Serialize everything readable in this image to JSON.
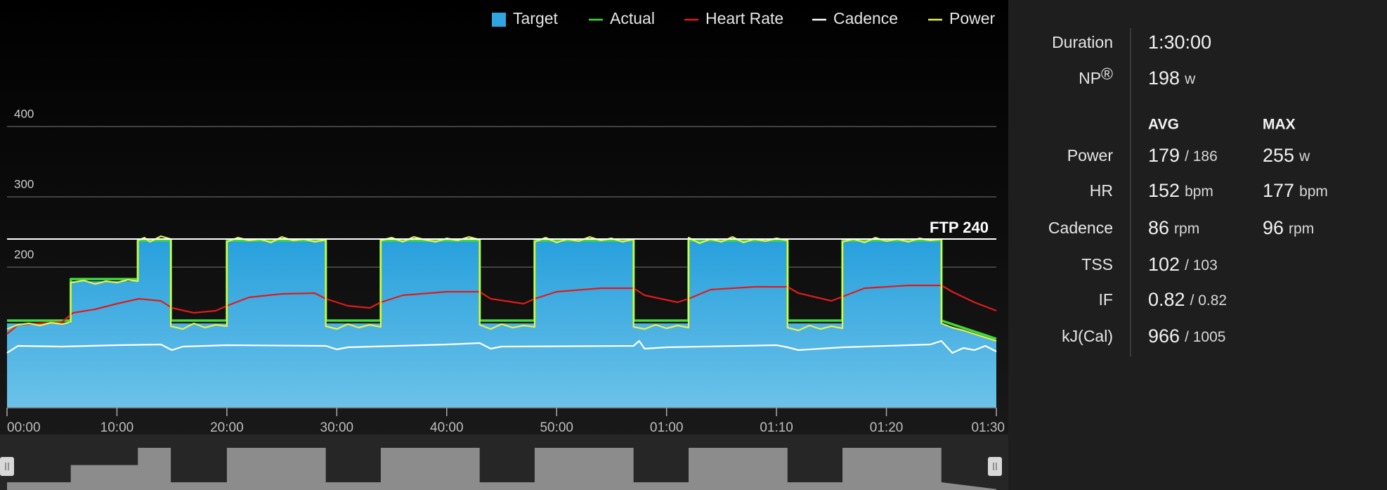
{
  "chart_data": {
    "type": "line",
    "legend": "top-right",
    "xlim": [
      0,
      90
    ],
    "xticks": [
      {
        "value": 0,
        "label": "00:00"
      },
      {
        "value": 10,
        "label": "10:00"
      },
      {
        "value": 20,
        "label": "20:00"
      },
      {
        "value": 30,
        "label": "30:00"
      },
      {
        "value": 40,
        "label": "40:00"
      },
      {
        "value": 50,
        "label": "50:00"
      },
      {
        "value": 60,
        "label": "01:00"
      },
      {
        "value": 70,
        "label": "01:10"
      },
      {
        "value": 80,
        "label": "01:20"
      },
      {
        "value": 90,
        "label": "01:30"
      }
    ],
    "ylim": [
      0,
      400
    ],
    "yticks": [
      200,
      300,
      400
    ],
    "grid": true,
    "reference_line": {
      "value": 240,
      "label": "FTP 240",
      "color": "#ffffff"
    },
    "series": [
      {
        "name": "Target",
        "color": "#2fa6e0",
        "fill": true,
        "x": [
          0,
          5.8,
          5.8,
          11.9,
          11.9,
          14.9,
          14.9,
          20,
          20,
          29,
          29,
          34,
          34,
          43,
          43,
          48,
          48,
          57,
          57,
          62,
          62,
          71,
          71,
          76,
          76,
          85,
          85,
          90
        ],
        "values": [
          120,
          120,
          180,
          180,
          240,
          240,
          120,
          120,
          240,
          240,
          120,
          120,
          240,
          240,
          120,
          120,
          240,
          240,
          120,
          120,
          240,
          240,
          120,
          120,
          240,
          240,
          120,
          96
        ]
      },
      {
        "name": "Actual",
        "color": "#3ddc3d",
        "x": [
          0,
          5.8,
          5.8,
          11.9,
          11.9,
          14.9,
          14.9,
          20,
          20,
          29,
          29,
          34,
          34,
          43,
          43,
          48,
          48,
          57,
          57,
          62,
          62,
          71,
          71,
          76,
          76,
          85,
          85,
          90
        ],
        "values": [
          124,
          124,
          183,
          183,
          238,
          238,
          124,
          124,
          238,
          238,
          124,
          124,
          238,
          238,
          124,
          124,
          238,
          238,
          124,
          124,
          238,
          238,
          124,
          124,
          238,
          238,
          124,
          98
        ]
      },
      {
        "name": "Heart Rate",
        "color": "#e01b1b",
        "x": [
          0,
          1,
          5,
          6,
          8,
          10,
          12,
          14,
          15,
          17,
          19,
          20,
          22,
          25,
          28,
          29,
          31,
          33,
          34,
          36,
          40,
          43,
          44,
          47,
          48,
          50,
          54,
          57,
          58,
          61,
          62,
          64,
          68,
          71,
          72,
          75,
          76,
          78,
          82,
          85,
          86,
          88,
          90
        ],
        "values": [
          105,
          118,
          122,
          135,
          140,
          148,
          155,
          152,
          142,
          135,
          138,
          145,
          157,
          162,
          163,
          155,
          145,
          142,
          150,
          160,
          165,
          165,
          155,
          148,
          155,
          165,
          170,
          170,
          160,
          150,
          155,
          168,
          172,
          172,
          163,
          152,
          158,
          170,
          174,
          174,
          165,
          150,
          138
        ]
      },
      {
        "name": "Cadence",
        "color": "#ffffff",
        "x": [
          0,
          1,
          5,
          10,
          14,
          15,
          16,
          20,
          29,
          30,
          31,
          40,
          43,
          44,
          45,
          57,
          57.5,
          58,
          60,
          70,
          71,
          72,
          76,
          84,
          85,
          86,
          87,
          88,
          89,
          90
        ],
        "values": [
          78,
          88,
          87,
          89,
          90,
          82,
          87,
          89,
          88,
          83,
          86,
          90,
          92,
          84,
          87,
          88,
          95,
          84,
          86,
          89,
          86,
          82,
          86,
          90,
          95,
          78,
          85,
          82,
          88,
          80
        ]
      },
      {
        "name": "Power",
        "color": "#e8f050",
        "x": [
          0,
          1,
          2,
          3,
          4,
          5,
          5.8,
          5.8,
          7,
          8,
          9,
          10,
          11,
          11.9,
          11.9,
          12.5,
          13,
          14,
          14.9,
          14.9,
          16,
          17,
          18,
          19,
          20,
          20,
          21,
          22,
          23,
          24,
          25,
          26,
          27,
          28,
          29,
          29,
          30,
          31,
          32,
          33,
          34,
          34,
          35,
          36,
          37,
          38,
          39,
          40,
          41,
          42,
          43,
          43,
          44,
          45,
          46,
          47,
          48,
          48,
          49,
          50,
          51,
          52,
          53,
          54,
          55,
          56,
          57,
          57,
          58,
          59,
          60,
          61,
          62,
          62,
          63,
          64,
          65,
          66,
          67,
          68,
          69,
          70,
          71,
          71,
          72,
          73,
          74,
          75,
          76,
          76,
          77,
          78,
          79,
          80,
          81,
          82,
          83,
          84,
          85,
          85,
          86,
          87,
          88,
          89,
          90
        ],
        "values": [
          112,
          118,
          120,
          117,
          121,
          119,
          122,
          178,
          181,
          176,
          180,
          178,
          182,
          180,
          238,
          242,
          236,
          244,
          240,
          116,
          112,
          120,
          114,
          118,
          116,
          236,
          242,
          238,
          240,
          235,
          243,
          238,
          240,
          236,
          239,
          116,
          112,
          119,
          114,
          118,
          115,
          238,
          242,
          236,
          243,
          239,
          236,
          241,
          238,
          243,
          239,
          118,
          112,
          119,
          114,
          117,
          115,
          236,
          242,
          235,
          240,
          237,
          243,
          238,
          241,
          236,
          240,
          115,
          112,
          118,
          113,
          117,
          114,
          242,
          234,
          240,
          236,
          243,
          235,
          240,
          237,
          241,
          238,
          114,
          110,
          117,
          112,
          116,
          113,
          236,
          240,
          235,
          242,
          237,
          240,
          236,
          241,
          238,
          240,
          120,
          114,
          110,
          105,
          100,
          95
        ]
      }
    ]
  },
  "summary": {
    "duration": {
      "label": "Duration",
      "value": "1:30:00"
    },
    "np": {
      "label": "NP",
      "mark": "®",
      "value": "198",
      "unit": "w"
    },
    "headers": [
      "AVG",
      "MAX"
    ],
    "rows": [
      {
        "label": "Power",
        "avg": [
          "179",
          "/ 186"
        ],
        "max": [
          "255",
          "w"
        ]
      },
      {
        "label": "HR",
        "avg": [
          "152",
          "bpm"
        ],
        "max": [
          "177",
          "bpm"
        ]
      },
      {
        "label": "Cadence",
        "avg": [
          "86",
          "rpm"
        ],
        "max": [
          "96",
          "rpm"
        ]
      },
      {
        "label": "TSS",
        "avg": [
          "102",
          "/ 103"
        ]
      },
      {
        "label": "IF",
        "avg": [
          "0.82",
          "/ 0.82"
        ]
      },
      {
        "label": "kJ(Cal)",
        "avg": [
          "966",
          "/ 1005"
        ]
      }
    ]
  }
}
